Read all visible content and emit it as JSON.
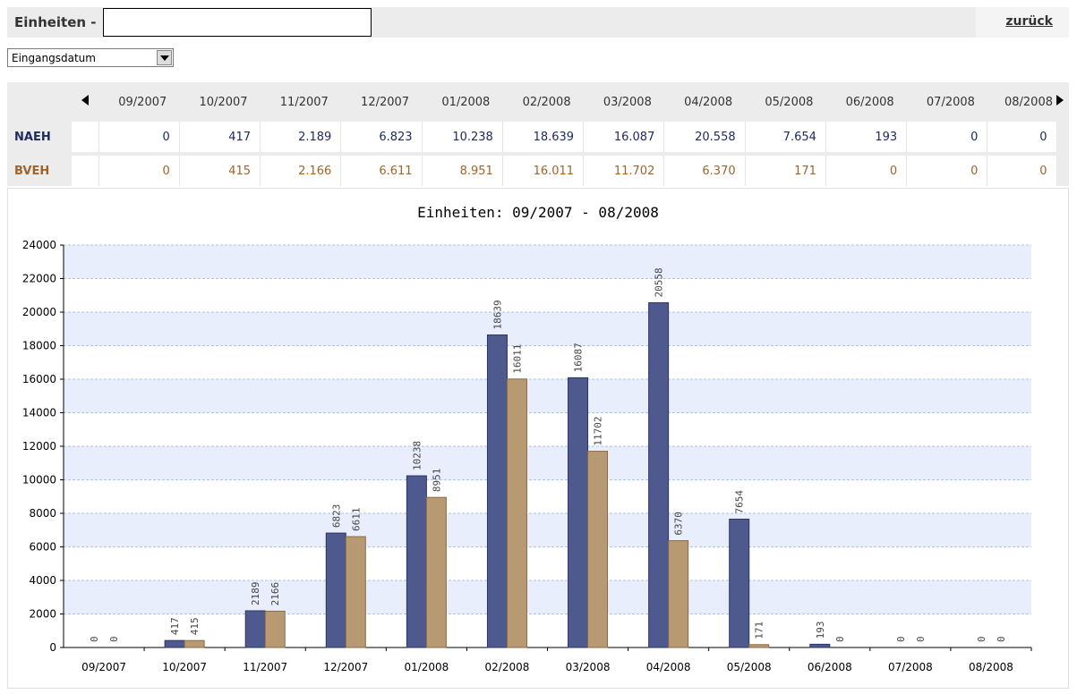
{
  "header": {
    "title": "Einheiten -",
    "title_input_value": "",
    "back_label": "zurück"
  },
  "filter": {
    "selected": "Eingangsdatum"
  },
  "table": {
    "columns": [
      "09/2007",
      "10/2007",
      "11/2007",
      "12/2007",
      "01/2008",
      "02/2008",
      "03/2008",
      "04/2008",
      "05/2008",
      "06/2008",
      "07/2008",
      "08/2008"
    ],
    "rows": [
      {
        "label": "NAEH",
        "values": [
          "0",
          "417",
          "2.189",
          "6.823",
          "10.238",
          "18.639",
          "16.087",
          "20.558",
          "7.654",
          "193",
          "0",
          "0"
        ]
      },
      {
        "label": "BVEH",
        "values": [
          "0",
          "415",
          "2.166",
          "6.611",
          "8.951",
          "16.011",
          "11.702",
          "6.370",
          "171",
          "0",
          "0",
          "0"
        ]
      }
    ]
  },
  "colors": {
    "naeh": "#4e5a8e",
    "bveh": "#b89a72",
    "band": "#e8eefb"
  },
  "chart_data": {
    "type": "bar",
    "title": "Einheiten:  09/2007 - 08/2008",
    "categories": [
      "09/2007",
      "10/2007",
      "11/2007",
      "12/2007",
      "01/2008",
      "02/2008",
      "03/2008",
      "04/2008",
      "05/2008",
      "06/2008",
      "07/2008",
      "08/2008"
    ],
    "series": [
      {
        "name": "NAEH",
        "values": [
          0,
          417,
          2189,
          6823,
          10238,
          18639,
          16087,
          20558,
          7654,
          193,
          0,
          0
        ]
      },
      {
        "name": "BVEH",
        "values": [
          0,
          415,
          2166,
          6611,
          8951,
          16011,
          11702,
          6370,
          171,
          0,
          0,
          0
        ]
      }
    ],
    "ylim": [
      0,
      24000
    ],
    "yticks": [
      0,
      2000,
      4000,
      6000,
      8000,
      10000,
      12000,
      14000,
      16000,
      18000,
      20000,
      22000,
      24000
    ],
    "grid": true,
    "legend": "none"
  }
}
